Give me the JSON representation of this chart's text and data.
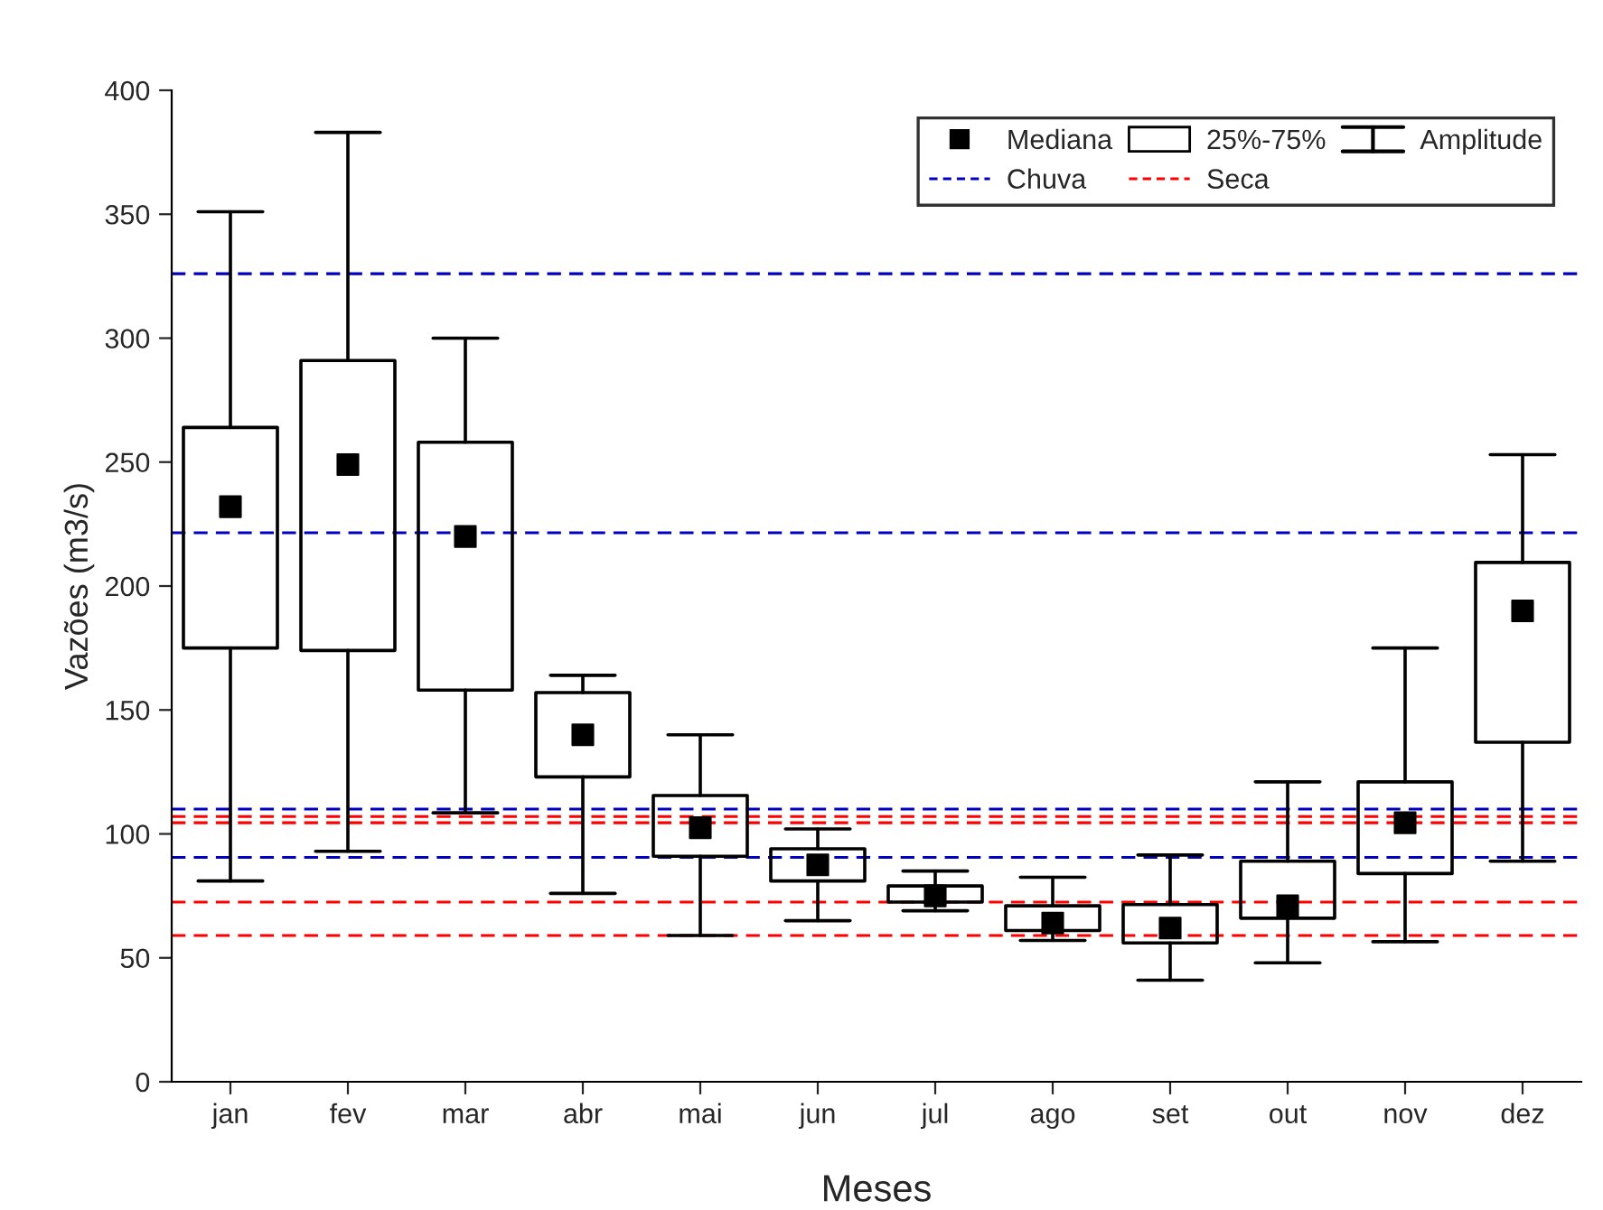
{
  "chart_data": {
    "type": "box",
    "xlabel": "Meses",
    "ylabel": "Vazões (m3/s)",
    "categories": [
      "jan",
      "fev",
      "mar",
      "abr",
      "mai",
      "jun",
      "jul",
      "ago",
      "set",
      "out",
      "nov",
      "dez"
    ],
    "boxes": [
      {
        "low": 81,
        "q1": 175,
        "median": 232,
        "q3": 264,
        "high": 351
      },
      {
        "low": 93,
        "q1": 174,
        "median": 249,
        "q3": 291,
        "high": 383
      },
      {
        "low": 108.5,
        "q1": 158,
        "median": 220,
        "q3": 258,
        "high": 300
      },
      {
        "low": 76,
        "q1": 123,
        "median": 140,
        "q3": 157,
        "high": 164
      },
      {
        "low": 59,
        "q1": 91,
        "median": 102.5,
        "q3": 115.5,
        "high": 140
      },
      {
        "low": 65,
        "q1": 81,
        "median": 87.5,
        "q3": 94,
        "high": 102
      },
      {
        "low": 69,
        "q1": 72.5,
        "median": 75,
        "q3": 79,
        "high": 85
      },
      {
        "low": 57,
        "q1": 61,
        "median": 64,
        "q3": 71,
        "high": 82.5
      },
      {
        "low": 41,
        "q1": 56,
        "median": 62,
        "q3": 71.5,
        "high": 91.5
      },
      {
        "low": 48,
        "q1": 66,
        "median": 71,
        "q3": 89,
        "high": 121
      },
      {
        "low": 56.5,
        "q1": 84,
        "median": 104.5,
        "q3": 121,
        "high": 175
      },
      {
        "low": 89,
        "q1": 137,
        "median": 190,
        "q3": 209.5,
        "high": 253
      }
    ],
    "ref_lines": [
      {
        "axis": "y",
        "value": 326,
        "label": "Chuva",
        "color": "#0000c0",
        "line_style": "dashed"
      },
      {
        "axis": "y",
        "value": 221.5,
        "label": null,
        "color": "#0000c0",
        "line_style": "dashed"
      },
      {
        "axis": "y",
        "value": 110,
        "label": null,
        "color": "#0000c0",
        "line_style": "dashed"
      },
      {
        "axis": "y",
        "value": 90.5,
        "label": null,
        "color": "#0000c0",
        "line_style": "dashed"
      },
      {
        "axis": "y",
        "value": 107,
        "label": "Seca",
        "color": "#ff0000",
        "line_style": "dashed"
      },
      {
        "axis": "y",
        "value": 104.5,
        "label": null,
        "color": "#ff0000",
        "line_style": "dashed"
      },
      {
        "axis": "y",
        "value": 72.5,
        "label": null,
        "color": "#ff0000",
        "line_style": "dashed"
      },
      {
        "axis": "y",
        "value": 59,
        "label": null,
        "color": "#ff0000",
        "line_style": "dashed"
      }
    ],
    "annotations": [
      "Mediana",
      "25%-75%",
      "Amplitude"
    ],
    "marker": "square",
    "ylim": [
      0,
      400
    ],
    "yticks": [
      0,
      50,
      100,
      150,
      200,
      250,
      300,
      350,
      400
    ],
    "grid": false,
    "legend": "top right"
  }
}
